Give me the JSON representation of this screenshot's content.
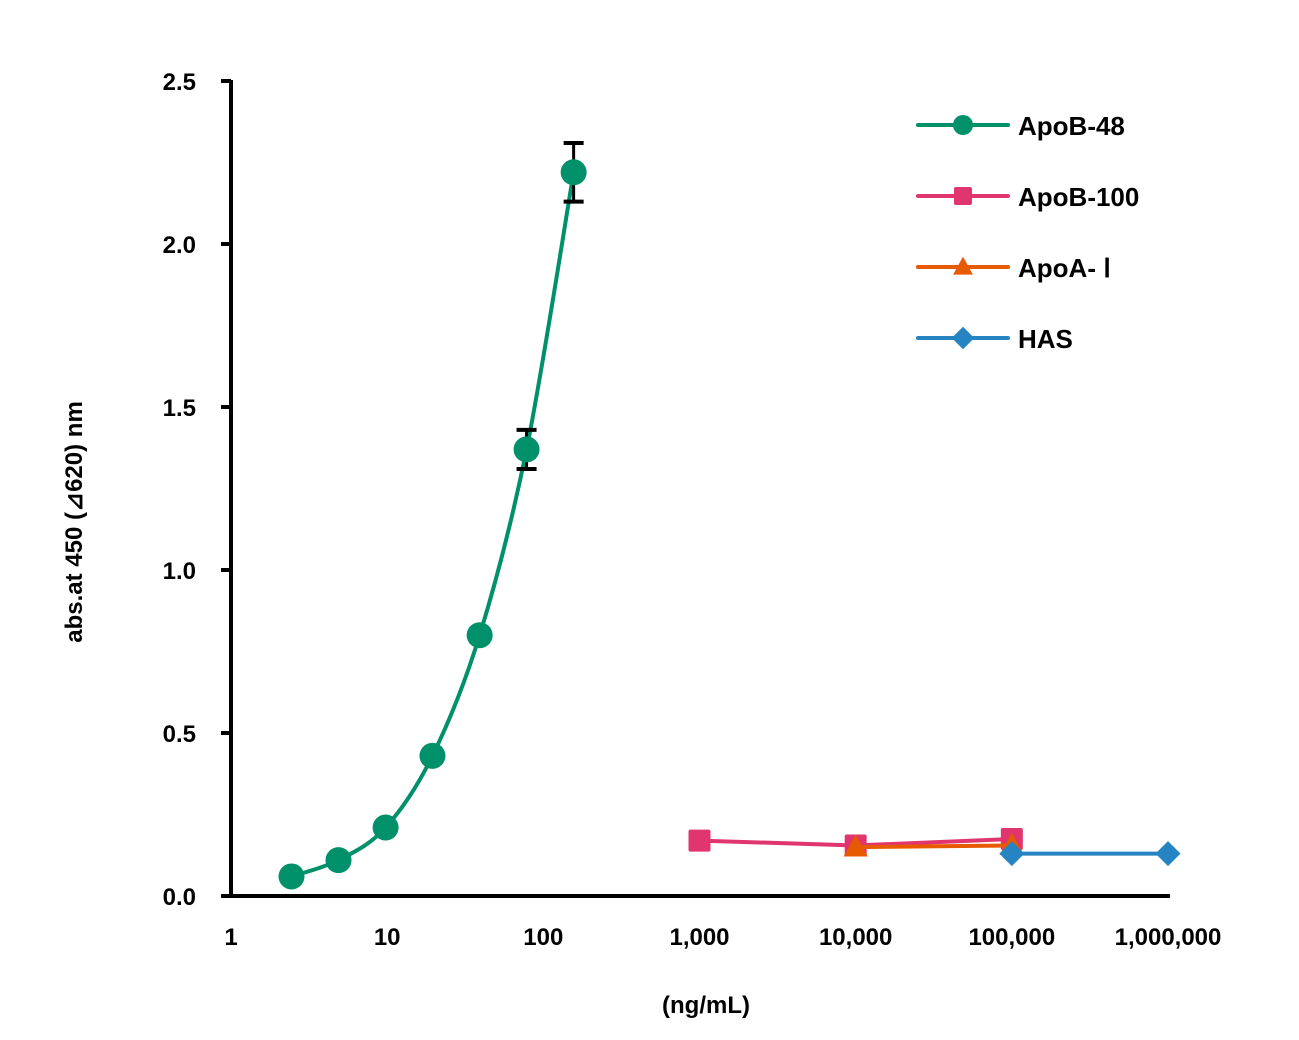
{
  "chart_data": {
    "type": "line",
    "title": "",
    "xlabel": "(ng/mL)",
    "ylabel": "abs.at 450 (⊿620) nm",
    "xscale": "log",
    "xlim": [
      1,
      1000000
    ],
    "ylim": [
      0,
      2.5
    ],
    "grid": false,
    "legend_position": "upper right",
    "x_ticks": [
      1,
      10,
      100,
      1000,
      10000,
      100000,
      1000000
    ],
    "x_tick_labels": [
      "1",
      "10",
      "100",
      "1,000",
      "10,000",
      "100,000",
      "1,000,000"
    ],
    "y_ticks": [
      0,
      0.5,
      1.0,
      1.5,
      2.0,
      2.5
    ],
    "y_tick_labels": [
      "0.0",
      "0.5",
      "1.0",
      "1.5",
      "2.0",
      "2.5"
    ],
    "series": [
      {
        "name": "ApoB-48",
        "color": "#00906a",
        "marker": "circle",
        "smooth": true,
        "x": [
          2.44,
          4.88,
          9.77,
          19.5,
          39.1,
          78.1,
          156.3
        ],
        "values": [
          0.06,
          0.11,
          0.21,
          0.43,
          0.8,
          1.37,
          2.22
        ],
        "error": [
          0,
          0,
          0,
          0,
          0.02,
          0.06,
          0.09
        ]
      },
      {
        "name": "ApoB-100",
        "color": "#e0356f",
        "marker": "square",
        "smooth": false,
        "x": [
          1000,
          10000,
          100000
        ],
        "values": [
          0.17,
          0.155,
          0.175
        ],
        "error": [
          0,
          0,
          0
        ]
      },
      {
        "name": "ApoA- Ⅰ",
        "color": "#e85a00",
        "marker": "triangle",
        "smooth": false,
        "x": [
          10000,
          100000
        ],
        "values": [
          0.15,
          0.155
        ],
        "error": [
          0,
          0
        ]
      },
      {
        "name": "HAS",
        "color": "#2584c1",
        "marker": "diamond",
        "smooth": false,
        "x": [
          100000,
          1000000
        ],
        "values": [
          0.13,
          0.13
        ],
        "error": [
          0,
          0
        ]
      }
    ]
  }
}
